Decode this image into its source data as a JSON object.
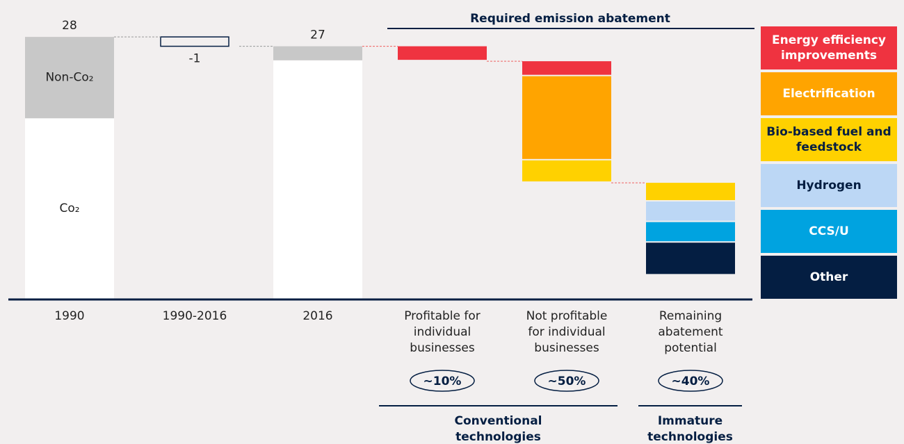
{
  "chart_data": {
    "type": "waterfall",
    "title": "Required emission abatement",
    "categories": [
      "1990",
      "1990-2016",
      "2016",
      "Profitable for individual businesses",
      "Not profitable for individual businesses",
      "Remaining abatement potential"
    ],
    "totals": [
      28,
      null,
      27,
      null,
      null,
      null
    ],
    "series": [
      {
        "name": "Co₂",
        "color": "#ffffff",
        "values": [
          19.3,
          null,
          25.5,
          null,
          null,
          null
        ]
      },
      {
        "name": "Non-Co₂",
        "color": "#c8c8c8",
        "values": [
          8.7,
          null,
          1.5,
          null,
          null,
          null
        ]
      },
      {
        "name": null,
        "color": "#ffffff",
        "values": [
          null,
          -1,
          null,
          null,
          null,
          null
        ]
      },
      {
        "name": "Energy efficiency improvements",
        "color": "#ef3340",
        "values": [
          null,
          null,
          null,
          1.6,
          1.6,
          null
        ]
      },
      {
        "name": "Electrification",
        "color": "#ffa400",
        "values": [
          null,
          null,
          null,
          null,
          9.0,
          null
        ]
      },
      {
        "name": "Bio-based fuel and feedstock",
        "color": "#ffd100",
        "values": [
          null,
          null,
          null,
          null,
          2.4,
          2.0
        ]
      },
      {
        "name": "Hydrogen",
        "color": "#bcd7f5",
        "values": [
          null,
          null,
          null,
          null,
          null,
          2.2
        ]
      },
      {
        "name": "CCS/U",
        "color": "#00a3e0",
        "values": [
          null,
          null,
          null,
          null,
          null,
          2.2
        ]
      },
      {
        "name": "Other",
        "color": "#041e42",
        "values": [
          null,
          null,
          null,
          null,
          null,
          3.5
        ]
      }
    ],
    "shares": {
      "values": [
        null,
        null,
        null,
        10,
        50,
        40
      ],
      "value_labels": [
        null,
        null,
        null,
        "~10%",
        "~50%",
        "~40%"
      ]
    },
    "groups": [
      "Conventional technologies",
      "Immature technologies"
    ]
  }
}
